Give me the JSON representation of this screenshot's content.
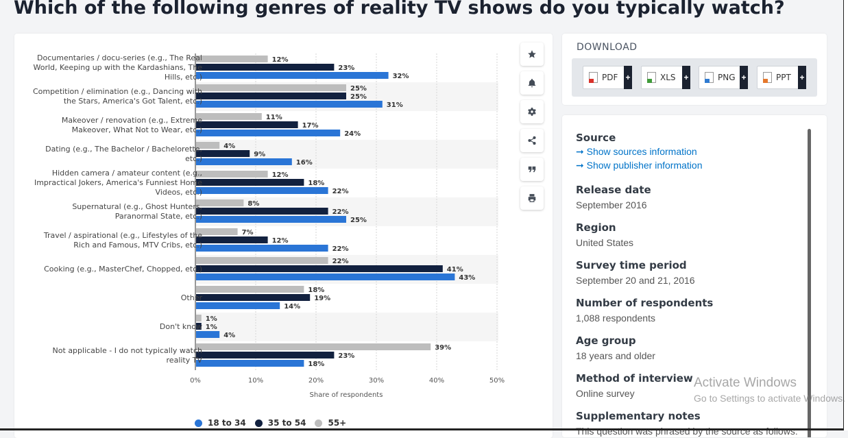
{
  "page": {
    "title": "Which of the following genres of reality TV shows do you typically watch?"
  },
  "toolbar": {
    "buttons": [
      {
        "name": "favorite",
        "icon": "star-icon"
      },
      {
        "name": "notification",
        "icon": "bell-icon"
      },
      {
        "name": "settings",
        "icon": "gear-icon"
      },
      {
        "name": "share",
        "icon": "share-icon"
      },
      {
        "name": "cite",
        "icon": "quote-icon"
      },
      {
        "name": "print",
        "icon": "printer-icon"
      }
    ]
  },
  "download": {
    "title": "DOWNLOAD",
    "buttons": [
      {
        "label": "PDF",
        "color": "#d9322a",
        "plus": "+"
      },
      {
        "label": "XLS",
        "color": "#3f9b3a",
        "plus": "+"
      },
      {
        "label": "PNG",
        "color": "#2f7bd1",
        "plus": "+"
      },
      {
        "label": "PPT",
        "color": "#e5782c",
        "plus": "+"
      }
    ]
  },
  "info": {
    "source_label": "Source",
    "source_link1": "➞ Show sources information",
    "source_link2": "➞ Show publisher information",
    "release_label": "Release date",
    "release_value": "September 2016",
    "region_label": "Region",
    "region_value": "United States",
    "period_label": "Survey time period",
    "period_value": "September 20 and 21, 2016",
    "respondents_label": "Number of respondents",
    "respondents_value": "1,088 respondents",
    "age_label": "Age group",
    "age_value": "18 years and older",
    "method_label": "Method of interview",
    "method_value": "Online survey",
    "notes_label": "Supplementary notes",
    "notes_value": "This question was phrased by the source as follows:"
  },
  "watermark": {
    "line1": "Activate Windows",
    "line2": "Go to Settings to activate Windows."
  },
  "chart_data": {
    "type": "bar",
    "orientation": "horizontal",
    "categories": [
      "Documentaries / docu-series (e.g., The Real World, Keeping up with the Kardashians, The Hills, etc.)",
      "Competition / elimination (e.g., Dancing with the Stars, America's Got Talent, etc.)",
      "Makeover / renovation (e.g., Extreme Makeover, What Not to Wear, etc.)",
      "Dating (e.g., The Bachelor / Bachelorette, etc.)",
      "Hidden camera / amateur content (e.g., Impractical Jokers, America's Funniest Home Videos, etc.)",
      "Supernatural (e.g., Ghost Hunters, Paranormal State, etc.)",
      "Travel / aspirational (e.g., Lifestyles of the Rich and Famous, MTV Cribs, etc.)",
      "Cooking (e.g., MasterChef, Chopped, etc.)",
      "Other",
      "Don't know",
      "Not applicable - I do not typically watch reality TV"
    ],
    "series": [
      {
        "name": "55+",
        "color": "#bdbdbd",
        "values": [
          12,
          25,
          11,
          4,
          12,
          8,
          7,
          22,
          18,
          1,
          39
        ]
      },
      {
        "name": "35 to 54",
        "color": "#12213f",
        "values": [
          23,
          25,
          17,
          9,
          18,
          22,
          12,
          41,
          19,
          1,
          23
        ]
      },
      {
        "name": "18 to 34",
        "color": "#2a75d6",
        "values": [
          32,
          31,
          24,
          16,
          22,
          25,
          22,
          43,
          14,
          4,
          18
        ]
      }
    ],
    "legend_order": [
      "18 to 34",
      "35 to 54",
      "55+"
    ],
    "xlabel": "Share of respondents",
    "xlim": [
      0,
      50
    ],
    "xticks": [
      "0%",
      "10%",
      "20%",
      "30%",
      "40%",
      "50%"
    ],
    "value_suffix": "%"
  }
}
